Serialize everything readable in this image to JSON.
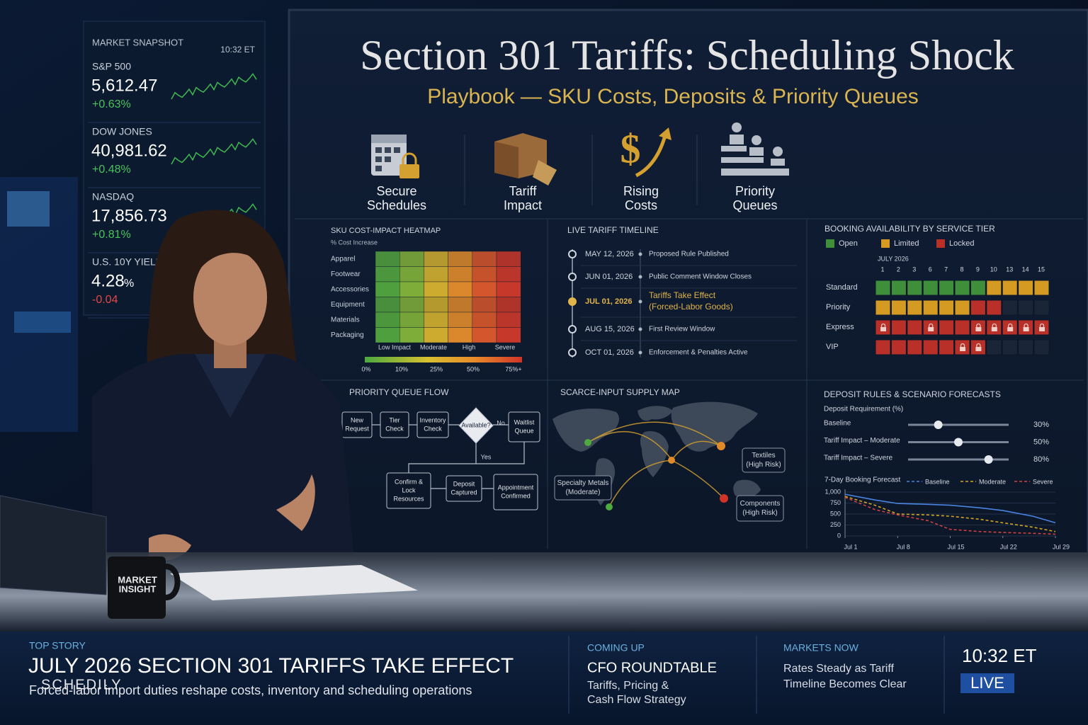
{
  "market_snapshot": {
    "title": "MARKET SNAPSHOT",
    "time": "10:32 ET",
    "items": [
      {
        "name": "S&P 500",
        "value": "5,612.47",
        "change": "+0.63%",
        "trend": "up"
      },
      {
        "name": "DOW JONES",
        "value": "40,981.62",
        "change": "+0.48%",
        "trend": "up"
      },
      {
        "name": "NASDAQ",
        "value": "17,856.73",
        "change": "+0.81%",
        "trend": "up"
      },
      {
        "name": "U.S. 10Y YIELD",
        "value": "4.28",
        "unit": "%",
        "change": "-0.04",
        "trend": "down"
      }
    ]
  },
  "screen": {
    "title": "Section 301 Tariffs: Scheduling Shock",
    "subtitle": "Playbook — SKU Costs, Deposits & Priority Queues",
    "icons": [
      [
        "Secure",
        "Schedules"
      ],
      [
        "Tariff",
        "Impact"
      ],
      [
        "Rising",
        "Costs"
      ],
      [
        "Priority",
        "Queues"
      ]
    ]
  },
  "heatmap": {
    "title": "SKU COST-IMPACT HEATMAP",
    "axis_label": "% Cost Increase",
    "rows": [
      "Apparel",
      "Footwear",
      "Accessories",
      "Equipment",
      "Materials",
      "Packaging"
    ],
    "columns": [
      "Low Impact",
      "Moderate",
      "High",
      "Severe"
    ],
    "scale": [
      "0%",
      "10%",
      "25%",
      "50%",
      "75%+"
    ]
  },
  "timeline": {
    "title": "LIVE TARIFF TIMELINE",
    "events": [
      {
        "date": "MAY 12, 2026",
        "label": [
          "Proposed Rule Published"
        ]
      },
      {
        "date": "JUN 01, 2026",
        "label": [
          "Public Comment Window Closes"
        ]
      },
      {
        "date": "JUL 01, 2026",
        "label": [
          "Tariffs Take Effect",
          "(Forced-Labor Goods)"
        ],
        "highlight": true
      },
      {
        "date": "AUG 15, 2026",
        "label": [
          "First Review Window"
        ]
      },
      {
        "date": "OCT 01, 2026",
        "label": [
          "Enforcement & Penalties Active"
        ]
      }
    ]
  },
  "booking": {
    "title": "BOOKING AVAILABILITY BY SERVICE TIER",
    "legend": [
      {
        "label": "Open",
        "color": "#3f8f3a"
      },
      {
        "label": "Limited",
        "color": "#d49a22"
      },
      {
        "label": "Locked",
        "color": "#b83028"
      }
    ],
    "month": "JULY 2026",
    "days": [
      "1",
      "2",
      "3",
      "6",
      "7",
      "8",
      "9",
      "10",
      "13",
      "14",
      "15"
    ],
    "rows": [
      {
        "name": "Standard",
        "cells": [
          "open",
          "open",
          "open",
          "open",
          "open",
          "open",
          "open",
          "limited",
          "limited",
          "limited",
          "limited"
        ]
      },
      {
        "name": "Priority",
        "cells": [
          "limited",
          "limited",
          "limited",
          "limited",
          "limited",
          "limited",
          "locked",
          "locked",
          "none",
          "none",
          "none"
        ]
      },
      {
        "name": "Express",
        "cells": [
          "lock",
          "locked",
          "locked",
          "lock",
          "locked",
          "locked",
          "lock",
          "lock",
          "lock",
          "lock",
          "lock"
        ]
      },
      {
        "name": "VIP",
        "cells": [
          "locked",
          "locked",
          "locked",
          "locked",
          "locked",
          "lock",
          "lock",
          "none",
          "none",
          "none",
          "none"
        ]
      }
    ]
  },
  "queue_flow": {
    "title": "PRIORITY QUEUE FLOW",
    "nodes": [
      [
        "New",
        "Request"
      ],
      [
        "Tier",
        "Check"
      ],
      [
        "Inventory",
        "Check"
      ],
      [
        "Available?"
      ],
      [
        "Waitlist",
        "Queue"
      ],
      [
        "Confirm &",
        "Lock",
        "Resources"
      ],
      [
        "Deposit",
        "Captured"
      ],
      [
        "Appointment",
        "Confirmed"
      ]
    ],
    "edge_labels": [
      "No",
      "Yes"
    ]
  },
  "supply_map": {
    "title": "SCARCE-INPUT SUPPLY MAP",
    "callouts": [
      [
        "Textiles",
        "(High Risk)"
      ],
      [
        "Specialty Metals",
        "(Moderate)"
      ],
      [
        "Components",
        "(High Risk)"
      ]
    ]
  },
  "deposit": {
    "title": "DEPOSIT RULES & SCENARIO FORECASTS",
    "subtitle": "Deposit Requirement (%)",
    "sliders": {
      "names": [
        "Baseline",
        "Tariff Impact – Moderate",
        "Tariff Impact – Severe"
      ],
      "values": [
        30,
        50,
        80
      ],
      "value_labels": [
        "30%",
        "50%",
        "80%"
      ],
      "xlim": [
        0,
        100
      ]
    }
  },
  "chart_data": {
    "type": "line",
    "title": "7-Day Booking Forecast",
    "x": [
      1,
      5,
      8,
      12,
      15,
      19,
      22,
      26,
      29
    ],
    "xlim": [
      1,
      29
    ],
    "xticks": [
      {
        "value": 1,
        "label": "Jul 1"
      },
      {
        "value": 8,
        "label": "Jul 8"
      },
      {
        "value": 15,
        "label": "Jul 15"
      },
      {
        "value": 22,
        "label": "Jul 22"
      },
      {
        "value": 29,
        "label": "Jul 29"
      }
    ],
    "ylim": [
      0,
      1000
    ],
    "yticks": [
      0,
      250,
      500,
      750,
      {
        "value": 1000,
        "label": "1,000"
      }
    ],
    "series": [
      {
        "name": "Baseline",
        "color": "#4a84e0",
        "values": [
          950,
          820,
          740,
          720,
          700,
          640,
          580,
          450,
          300
        ]
      },
      {
        "name": "Moderate",
        "color": "#d4a520",
        "values": [
          900,
          700,
          500,
          480,
          450,
          380,
          300,
          200,
          100
        ]
      },
      {
        "name": "Severe",
        "color": "#d04040",
        "values": [
          880,
          600,
          480,
          350,
          150,
          100,
          80,
          60,
          40
        ]
      }
    ]
  },
  "mug": [
    "MARKET",
    "INSIGHT"
  ],
  "lower_third": {
    "label": "TOP STORY",
    "headline": "JULY 2026 SECTION 301 TARIFFS TAKE EFFECT",
    "subhead": "Forced-labor import duties reshape costs, inventory and scheduling operations",
    "watermark": "SCHEDILY",
    "coming_up": {
      "label": "COMING UP",
      "title": "CFO ROUNDTABLE",
      "lines": [
        "Tariffs, Pricing &",
        "Cash Flow Strategy"
      ]
    },
    "markets_now": {
      "label": "MARKETS NOW",
      "lines": [
        "Rates Steady as Tariff",
        "Timeline Becomes Clear"
      ]
    },
    "time": "10:32 ET",
    "live": "LIVE"
  }
}
